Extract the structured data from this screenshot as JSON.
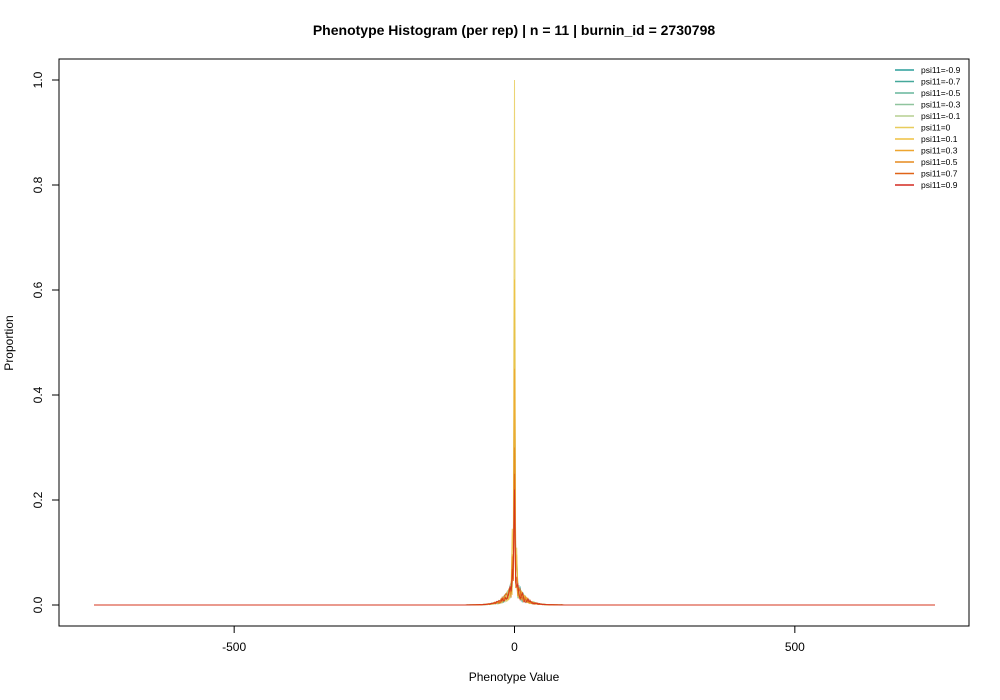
{
  "chart_data": {
    "type": "line",
    "title": "Phenotype Histogram (per rep) | n = 11 | burnin_id = 2730798",
    "xlabel": "Phenotype Value",
    "ylabel": "Proportion",
    "xlim": [
      -750,
      750
    ],
    "ylim": [
      0,
      1.0
    ],
    "x_ticks": [
      -500,
      0,
      500
    ],
    "x_tick_labels": [
      "-500",
      "0",
      "500"
    ],
    "y_ticks": [
      0,
      0.2,
      0.4,
      0.6,
      0.8,
      1.0
    ],
    "y_tick_labels": [
      "0.0",
      "0.2",
      "0.4",
      "0.6",
      "0.8",
      "1.0"
    ],
    "grid": false,
    "legend_position": "top-right",
    "series": [
      {
        "name": "psi11=-0.9",
        "color": "#2a9d9a",
        "peak": 0.55
      },
      {
        "name": "psi11=-0.7",
        "color": "#45a89a",
        "peak": 0.42
      },
      {
        "name": "psi11=-0.5",
        "color": "#66b69c",
        "peak": 0.38
      },
      {
        "name": "psi11=-0.3",
        "color": "#8fc49e",
        "peak": 0.58
      },
      {
        "name": "psi11=-0.1",
        "color": "#b6cf90",
        "peak": 0.48
      },
      {
        "name": "psi11=0",
        "color": "#e8cc5c",
        "peak": 1.0
      },
      {
        "name": "psi11=0.1",
        "color": "#efc040",
        "peak": 0.62
      },
      {
        "name": "psi11=0.3",
        "color": "#eea52f",
        "peak": 0.45
      },
      {
        "name": "psi11=0.5",
        "color": "#e58a1f",
        "peak": 0.3
      },
      {
        "name": "psi11=0.7",
        "color": "#e06418",
        "peak": 0.25
      },
      {
        "name": "psi11=0.9",
        "color": "#d42a20",
        "peak": 0.22
      }
    ]
  }
}
